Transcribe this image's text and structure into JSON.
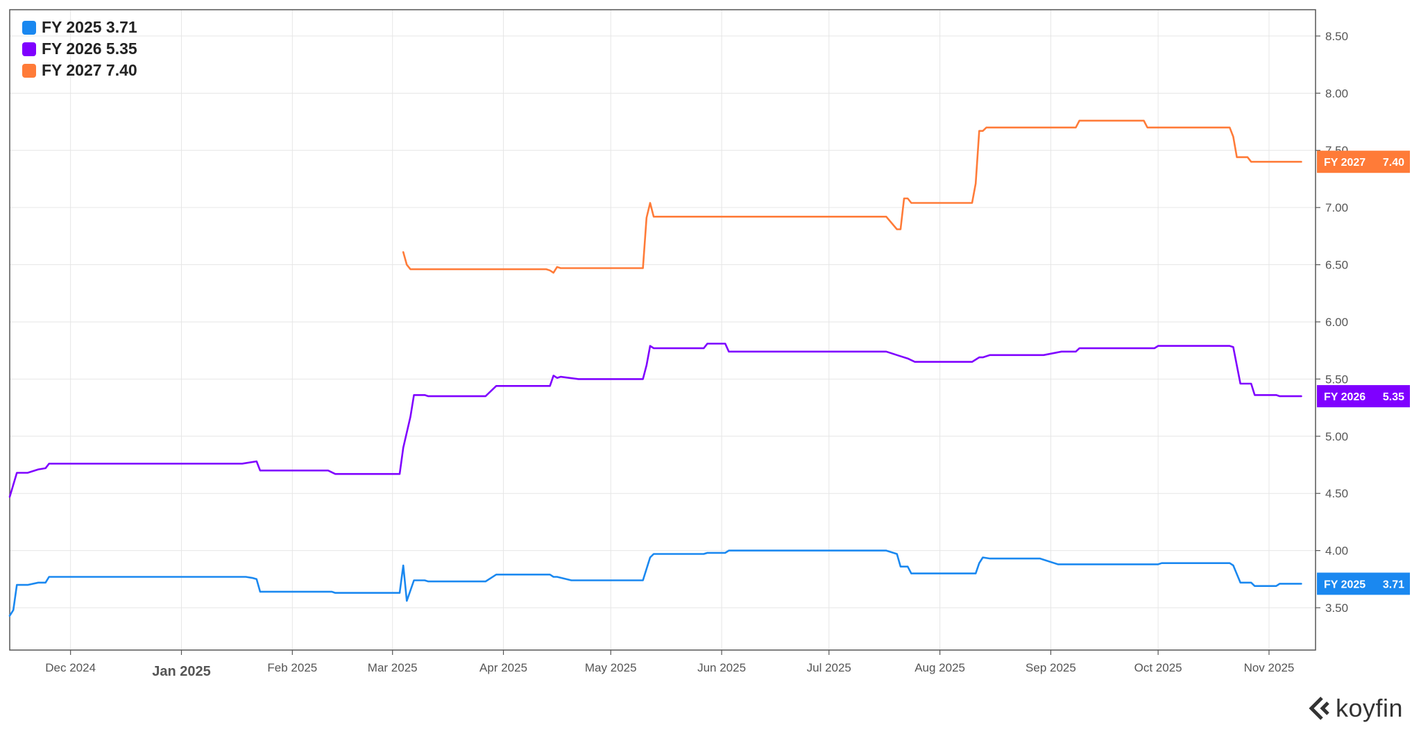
{
  "brand": {
    "name": "koyfin",
    "logo_icon": "koyfin-logo-icon"
  },
  "chart_data": {
    "type": "line",
    "title": "",
    "xlabel": "",
    "ylabel": "",
    "ylim": [
      3.13,
      8.73
    ],
    "xlim": [
      "2024-11-14",
      "2025-11-14"
    ],
    "grid": true,
    "legend_position": "top-left",
    "y_axis_side": "right",
    "y_ticks": [
      "3.50",
      "4.00",
      "4.50",
      "5.00",
      "5.50",
      "6.00",
      "6.50",
      "7.00",
      "7.50",
      "8.00",
      "8.50"
    ],
    "x_ticks": [
      {
        "date": "2024-12-01",
        "label": "Dec 2024",
        "major": false
      },
      {
        "date": "2025-01-01",
        "label": "Jan 2025",
        "major": true
      },
      {
        "date": "2025-02-01",
        "label": "Feb 2025",
        "major": false
      },
      {
        "date": "2025-03-01",
        "label": "Mar 2025",
        "major": false
      },
      {
        "date": "2025-04-01",
        "label": "Apr 2025",
        "major": false
      },
      {
        "date": "2025-05-01",
        "label": "May 2025",
        "major": false
      },
      {
        "date": "2025-06-01",
        "label": "Jun 2025",
        "major": false
      },
      {
        "date": "2025-07-01",
        "label": "Jul 2025",
        "major": false
      },
      {
        "date": "2025-08-01",
        "label": "Aug 2025",
        "major": false
      },
      {
        "date": "2025-09-01",
        "label": "Sep 2025",
        "major": false
      },
      {
        "date": "2025-10-01",
        "label": "Oct 2025",
        "major": false
      },
      {
        "date": "2025-11-01",
        "label": "Nov 2025",
        "major": false
      }
    ],
    "series": [
      {
        "name": "FY 2025",
        "legend_text": "FY 2025 3.71",
        "last_value": "3.71",
        "color": "#1a88f0",
        "points": [
          [
            "2024-11-14",
            3.43
          ],
          [
            "2024-11-15",
            3.48
          ],
          [
            "2024-11-16",
            3.7
          ],
          [
            "2024-11-19",
            3.7
          ],
          [
            "2024-11-22",
            3.72
          ],
          [
            "2024-11-24",
            3.72
          ],
          [
            "2024-11-25",
            3.77
          ],
          [
            "2025-01-19",
            3.77
          ],
          [
            "2025-01-21",
            3.76
          ],
          [
            "2025-01-22",
            3.75
          ],
          [
            "2025-01-23",
            3.64
          ],
          [
            "2025-02-12",
            3.64
          ],
          [
            "2025-02-13",
            3.63
          ],
          [
            "2025-03-03",
            3.63
          ],
          [
            "2025-03-04",
            3.87
          ],
          [
            "2025-03-05",
            3.56
          ],
          [
            "2025-03-07",
            3.74
          ],
          [
            "2025-03-10",
            3.74
          ],
          [
            "2025-03-11",
            3.73
          ],
          [
            "2025-03-27",
            3.73
          ],
          [
            "2025-03-30",
            3.79
          ],
          [
            "2025-04-14",
            3.79
          ],
          [
            "2025-04-15",
            3.77
          ],
          [
            "2025-04-16",
            3.77
          ],
          [
            "2025-04-20",
            3.74
          ],
          [
            "2025-05-10",
            3.74
          ],
          [
            "2025-05-12",
            3.94
          ],
          [
            "2025-05-13",
            3.97
          ],
          [
            "2025-05-27",
            3.97
          ],
          [
            "2025-05-28",
            3.98
          ],
          [
            "2025-06-02",
            3.98
          ],
          [
            "2025-06-03",
            4.0
          ],
          [
            "2025-07-17",
            4.0
          ],
          [
            "2025-07-20",
            3.97
          ],
          [
            "2025-07-21",
            3.86
          ],
          [
            "2025-07-23",
            3.86
          ],
          [
            "2025-07-24",
            3.8
          ],
          [
            "2025-08-11",
            3.8
          ],
          [
            "2025-08-12",
            3.89
          ],
          [
            "2025-08-13",
            3.94
          ],
          [
            "2025-08-15",
            3.93
          ],
          [
            "2025-08-29",
            3.93
          ],
          [
            "2025-09-03",
            3.88
          ],
          [
            "2025-09-10",
            3.88
          ],
          [
            "2025-10-01",
            3.88
          ],
          [
            "2025-10-02",
            3.89
          ],
          [
            "2025-10-21",
            3.89
          ],
          [
            "2025-10-22",
            3.87
          ],
          [
            "2025-10-24",
            3.72
          ],
          [
            "2025-10-27",
            3.72
          ],
          [
            "2025-10-28",
            3.69
          ],
          [
            "2025-11-03",
            3.69
          ],
          [
            "2025-11-04",
            3.71
          ],
          [
            "2025-11-10",
            3.71
          ]
        ]
      },
      {
        "name": "FY 2026",
        "legend_text": "FY 2026 5.35",
        "last_value": "5.35",
        "color": "#7f00ff",
        "points": [
          [
            "2024-11-14",
            4.47
          ],
          [
            "2024-11-16",
            4.68
          ],
          [
            "2024-11-19",
            4.68
          ],
          [
            "2024-11-22",
            4.71
          ],
          [
            "2024-11-24",
            4.72
          ],
          [
            "2024-11-25",
            4.76
          ],
          [
            "2025-01-18",
            4.76
          ],
          [
            "2025-01-22",
            4.78
          ],
          [
            "2025-01-23",
            4.7
          ],
          [
            "2025-02-11",
            4.7
          ],
          [
            "2025-02-13",
            4.67
          ],
          [
            "2025-03-03",
            4.67
          ],
          [
            "2025-03-04",
            4.9
          ],
          [
            "2025-03-06",
            5.17
          ],
          [
            "2025-03-07",
            5.36
          ],
          [
            "2025-03-10",
            5.36
          ],
          [
            "2025-03-11",
            5.35
          ],
          [
            "2025-03-27",
            5.35
          ],
          [
            "2025-03-30",
            5.44
          ],
          [
            "2025-04-14",
            5.44
          ],
          [
            "2025-04-15",
            5.53
          ],
          [
            "2025-04-16",
            5.51
          ],
          [
            "2025-04-17",
            5.52
          ],
          [
            "2025-04-22",
            5.5
          ],
          [
            "2025-05-10",
            5.5
          ],
          [
            "2025-05-11",
            5.62
          ],
          [
            "2025-05-12",
            5.79
          ],
          [
            "2025-05-13",
            5.77
          ],
          [
            "2025-05-27",
            5.77
          ],
          [
            "2025-05-28",
            5.81
          ],
          [
            "2025-06-02",
            5.81
          ],
          [
            "2025-06-03",
            5.74
          ],
          [
            "2025-07-17",
            5.74
          ],
          [
            "2025-07-20",
            5.71
          ],
          [
            "2025-07-23",
            5.68
          ],
          [
            "2025-07-25",
            5.65
          ],
          [
            "2025-08-10",
            5.65
          ],
          [
            "2025-08-12",
            5.69
          ],
          [
            "2025-08-13",
            5.69
          ],
          [
            "2025-08-15",
            5.71
          ],
          [
            "2025-08-30",
            5.71
          ],
          [
            "2025-09-04",
            5.74
          ],
          [
            "2025-09-08",
            5.74
          ],
          [
            "2025-09-09",
            5.77
          ],
          [
            "2025-09-30",
            5.77
          ],
          [
            "2025-10-01",
            5.79
          ],
          [
            "2025-10-21",
            5.79
          ],
          [
            "2025-10-22",
            5.78
          ],
          [
            "2025-10-24",
            5.46
          ],
          [
            "2025-10-27",
            5.46
          ],
          [
            "2025-10-28",
            5.36
          ],
          [
            "2025-11-03",
            5.36
          ],
          [
            "2025-11-04",
            5.35
          ],
          [
            "2025-11-10",
            5.35
          ]
        ]
      },
      {
        "name": "FY 2027",
        "legend_text": "FY 2027 7.40",
        "last_value": "7.40",
        "color": "#ff7b38",
        "points": [
          [
            "2025-03-04",
            6.61
          ],
          [
            "2025-03-05",
            6.5
          ],
          [
            "2025-03-06",
            6.46
          ],
          [
            "2025-04-13",
            6.46
          ],
          [
            "2025-04-14",
            6.45
          ],
          [
            "2025-04-15",
            6.43
          ],
          [
            "2025-04-16",
            6.48
          ],
          [
            "2025-04-17",
            6.47
          ],
          [
            "2025-05-10",
            6.47
          ],
          [
            "2025-05-11",
            6.91
          ],
          [
            "2025-05-12",
            7.04
          ],
          [
            "2025-05-13",
            6.92
          ],
          [
            "2025-07-17",
            6.92
          ],
          [
            "2025-07-20",
            6.81
          ],
          [
            "2025-07-21",
            6.81
          ],
          [
            "2025-07-22",
            7.08
          ],
          [
            "2025-07-23",
            7.08
          ],
          [
            "2025-07-24",
            7.04
          ],
          [
            "2025-08-10",
            7.04
          ],
          [
            "2025-08-11",
            7.21
          ],
          [
            "2025-08-12",
            7.67
          ],
          [
            "2025-08-13",
            7.67
          ],
          [
            "2025-08-14",
            7.7
          ],
          [
            "2025-09-08",
            7.7
          ],
          [
            "2025-09-09",
            7.76
          ],
          [
            "2025-09-27",
            7.76
          ],
          [
            "2025-09-28",
            7.7
          ],
          [
            "2025-10-21",
            7.7
          ],
          [
            "2025-10-22",
            7.62
          ],
          [
            "2025-10-23",
            7.44
          ],
          [
            "2025-10-26",
            7.44
          ],
          [
            "2025-10-27",
            7.4
          ],
          [
            "2025-11-10",
            7.4
          ]
        ]
      }
    ]
  }
}
